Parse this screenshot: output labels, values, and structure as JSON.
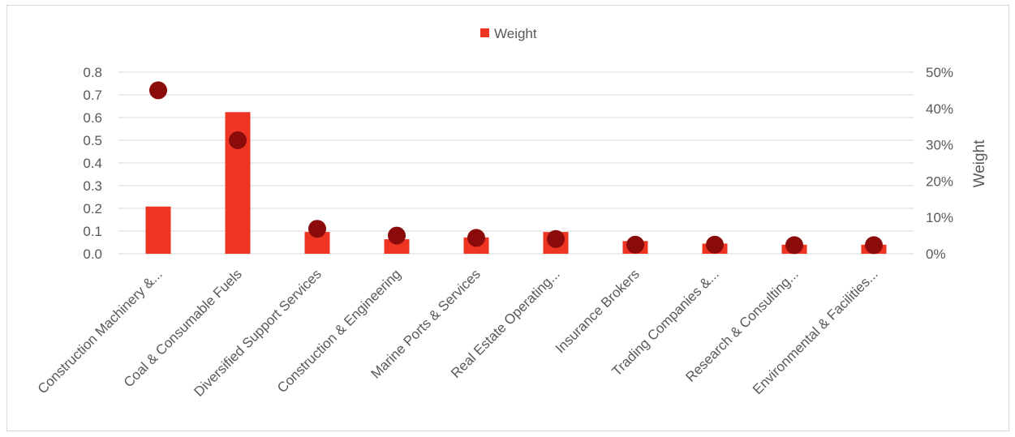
{
  "chart_data": {
    "type": "bar",
    "categories": [
      "Construction Machinery &...",
      "Coal & Consumable Fuels",
      "Diversified Support Services",
      "Construction & Engineering",
      "Marine Ports & Services",
      "Real Estate Operating...",
      "Insurance Brokers",
      "Trading Companies &...",
      "Research & Consulting...",
      "Environmental & Facilities..."
    ],
    "series": [
      {
        "name": "Weight",
        "axis": "right",
        "kind": "bar",
        "color": "#ee3524",
        "values": [
          0.13,
          0.39,
          0.06,
          0.04,
          0.045,
          0.06,
          0.035,
          0.028,
          0.025,
          0.025
        ]
      },
      {
        "axis": "left",
        "kind": "scatter",
        "color": "#8b0a0a",
        "values": [
          0.72,
          0.5,
          0.11,
          0.08,
          0.07,
          0.065,
          0.04,
          0.04,
          0.038,
          0.038
        ]
      }
    ],
    "left_axis": {
      "min": 0,
      "max": 0.8,
      "ticks": [
        "0.8",
        "0.7",
        "0.6",
        "0.5",
        "0.4",
        "0.3",
        "0.2",
        "0.1",
        "0.0"
      ]
    },
    "right_axis": {
      "min": 0,
      "max": 0.5,
      "ticks": [
        "50%",
        "40%",
        "30%",
        "20%",
        "10%",
        "0%"
      ],
      "label": "Weight"
    },
    "legend": {
      "position": "top",
      "label": "Weight"
    },
    "grid": true
  }
}
